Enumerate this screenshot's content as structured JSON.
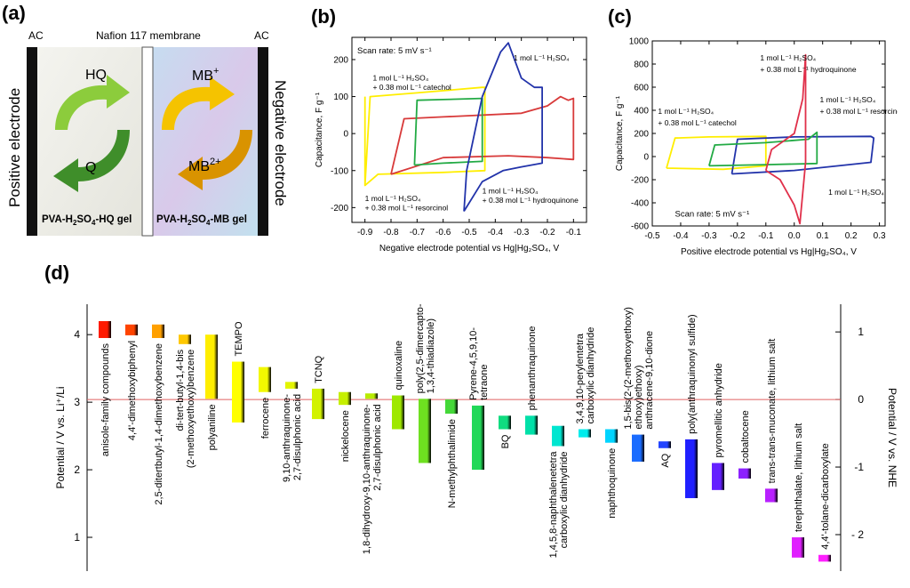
{
  "panels": {
    "a": "(a)",
    "b": "(b)",
    "c": "(c)",
    "d": "(d)"
  },
  "panel_a": {
    "ac_left": "AC",
    "ac_right": "AC",
    "membrane": "Nafion 117 membrane",
    "positive_electrode": "Positive electrode",
    "negative_electrode": "Negative electrode",
    "hq": "HQ",
    "q": "Q",
    "mb_plus": "MB",
    "mb_plus_sup": "+",
    "mb_2plus": "MB",
    "mb_2plus_sup": "2+",
    "gel_left": "PVA-H",
    "gel_left_sub1": "2",
    "gel_left_mid": "SO",
    "gel_left_sub2": "4",
    "gel_left_end": "-HQ gel",
    "gel_right": "PVA-H",
    "gel_right_sub1": "2",
    "gel_right_mid": "SO",
    "gel_right_sub2": "4",
    "gel_right_end": "-MB gel",
    "colors": {
      "green_dark": "#3f8e2a",
      "green_light": "#8ccc3c",
      "orange_dark": "#d99300",
      "orange_light": "#f5c300",
      "electrode": "#111111"
    }
  },
  "chart_data": [
    {
      "id": "b",
      "type": "line",
      "xlabel": "Negative electrode potential vs Hg|Hg₂SO₄, V",
      "ylabel": "Capacitance, F g⁻¹",
      "xlim": [
        -0.95,
        -0.05
      ],
      "ylim": [
        -240,
        260
      ],
      "xticks": [
        -0.9,
        -0.8,
        -0.7,
        -0.6,
        -0.5,
        -0.4,
        -0.3,
        -0.2,
        -0.1
      ],
      "xtick_labels": [
        "-0.9",
        "-0.8",
        "-0.7",
        "-0.6",
        "-0.5",
        "-0.4",
        "-0.3",
        "-0.2",
        "-0.1"
      ],
      "yticks": [
        -200,
        -100,
        0,
        100,
        200
      ],
      "ytick_labels": [
        "-200",
        "-100",
        "0",
        "100",
        "200"
      ],
      "annotation": "Scan rate: 5 mV s⁻¹",
      "series": [
        {
          "color": "#ffee00",
          "x": [
            -0.9,
            -0.88,
            -0.7,
            -0.45,
            -0.44,
            -0.44,
            -0.6,
            -0.85,
            -0.9,
            -0.9
          ],
          "y": [
            -140,
            100,
            110,
            125,
            125,
            -100,
            -105,
            -110,
            -140,
            100
          ]
        },
        {
          "color": "#d83a3a",
          "x": [
            -0.8,
            -0.75,
            -0.6,
            -0.3,
            -0.2,
            -0.15,
            -0.12,
            -0.1,
            -0.1,
            -0.2,
            -0.35,
            -0.6,
            -0.8
          ],
          "y": [
            -110,
            40,
            45,
            55,
            75,
            100,
            90,
            95,
            -70,
            -65,
            -60,
            -65,
            -110
          ]
        },
        {
          "color": "#22aa44",
          "x": [
            -0.71,
            -0.7,
            -0.6,
            -0.45,
            -0.45,
            -0.6,
            -0.71
          ],
          "y": [
            -85,
            90,
            92,
            95,
            -75,
            -80,
            -85
          ]
        },
        {
          "color": "#2233aa",
          "x": [
            -0.52,
            -0.51,
            -0.45,
            -0.38,
            -0.35,
            -0.3,
            -0.25,
            -0.22,
            -0.22,
            -0.3,
            -0.37,
            -0.45,
            -0.52,
            -0.52
          ],
          "y": [
            -210,
            -100,
            100,
            220,
            245,
            150,
            125,
            125,
            -80,
            -90,
            -100,
            -130,
            -210,
            -210
          ]
        }
      ],
      "labels": [
        {
          "text": "1 mol L⁻¹ H₂SO₄",
          "x": -0.33,
          "y": 198
        },
        {
          "text": "1 mol L⁻¹ H₂SO₄",
          "x": -0.87,
          "y": 143
        },
        {
          "text": "+ 0.38 mol L⁻¹ catechol",
          "x": -0.87,
          "y": 118
        },
        {
          "text": "1 mol L⁻¹ H₂SO₄",
          "x": -0.9,
          "y": -182
        },
        {
          "text": "+ 0.38 mol L⁻¹ resorcinol",
          "x": -0.9,
          "y": -207
        },
        {
          "text": "1 mol L⁻¹ H₂SO₄",
          "x": -0.45,
          "y": -162
        },
        {
          "text": "+ 0.38 mol L⁻¹ hydroquinone",
          "x": -0.45,
          "y": -187
        }
      ]
    },
    {
      "id": "c",
      "type": "line",
      "xlabel": "Positive electrode potential vs Hg|Hg₂SO₄, V",
      "ylabel": "Capacitance, F g⁻¹",
      "xlim": [
        -0.5,
        0.32
      ],
      "ylim": [
        -600,
        1000
      ],
      "xticks": [
        -0.5,
        -0.4,
        -0.3,
        -0.2,
        -0.1,
        0.0,
        0.1,
        0.2,
        0.3
      ],
      "xtick_labels": [
        "-0.5",
        "-0.4",
        "-0.3",
        "-0.2",
        "-0.1",
        "0.0",
        "0.1",
        "0.2",
        "0.3"
      ],
      "yticks": [
        -600,
        -400,
        -200,
        0,
        200,
        400,
        600,
        800,
        1000
      ],
      "ytick_labels": [
        "-600",
        "-400",
        "-200",
        "0",
        "200",
        "400",
        "600",
        "800",
        "1000"
      ],
      "annotation": "Scan rate: 5 mV s⁻¹",
      "series": [
        {
          "color": "#ffee00",
          "x": [
            -0.45,
            -0.42,
            -0.3,
            -0.1,
            -0.1,
            -0.25,
            -0.45
          ],
          "y": [
            -100,
            160,
            170,
            175,
            -80,
            -110,
            -100
          ]
        },
        {
          "color": "#2233aa",
          "x": [
            -0.22,
            -0.2,
            0.0,
            0.27,
            0.28,
            0.27,
            0.0,
            -0.22
          ],
          "y": [
            -150,
            150,
            170,
            175,
            160,
            -50,
            -120,
            -150
          ]
        },
        {
          "color": "#22aa44",
          "x": [
            -0.3,
            -0.28,
            -0.1,
            0.05,
            0.08,
            0.08,
            -0.1,
            -0.3
          ],
          "y": [
            -80,
            100,
            120,
            150,
            210,
            -60,
            -70,
            -80
          ]
        },
        {
          "color": "#e0304a",
          "x": [
            -0.1,
            -0.08,
            0.0,
            0.03,
            0.04,
            0.04,
            0.02,
            0.0,
            -0.05,
            -0.1
          ],
          "y": [
            -120,
            60,
            200,
            500,
            880,
            -50,
            -580,
            -420,
            -200,
            -120
          ]
        }
      ],
      "labels": [
        {
          "text": "1 mol L⁻¹ H₂SO₄",
          "x": -0.12,
          "y": 830
        },
        {
          "text": "+ 0.38 mol L⁻¹ hydroquinone",
          "x": -0.12,
          "y": 730
        },
        {
          "text": "1 mol L⁻¹ H₂SO₄",
          "x": 0.09,
          "y": 470
        },
        {
          "text": "+ 0.38 mol L⁻¹ resorcinol",
          "x": 0.09,
          "y": 370
        },
        {
          "text": "1 mol L⁻¹ H₂SO₄",
          "x": -0.48,
          "y": 370
        },
        {
          "text": "+ 0.38 mol L⁻¹ catechol",
          "x": -0.48,
          "y": 270
        },
        {
          "text": "1 mol L⁻¹ H₂SO₄",
          "x": 0.12,
          "y": -330
        }
      ]
    },
    {
      "id": "d",
      "type": "bar",
      "ylabel": "Potential / V vs. Li⁺/Li",
      "y2label": "Potential / V vs. NHE",
      "ylim": [
        0.5,
        4.45
      ],
      "yticks": [
        1,
        2,
        3,
        4
      ],
      "ytick_labels": [
        "1",
        "2",
        "3",
        "4"
      ],
      "y2_offset": 3.04,
      "y2ticks": [
        -2,
        -1,
        0,
        1
      ],
      "y2tick_labels": [
        "- 2",
        "-1",
        "0",
        "1"
      ],
      "ref_line": 3.04,
      "bars": [
        {
          "label": "anisole-family compounds",
          "low": 3.95,
          "high": 4.2,
          "color": "#ff1a00",
          "label_pos": "below"
        },
        {
          "label": "4,4'-dimethoxybiphenyl",
          "low": 3.99,
          "high": 4.15,
          "color": "#ff4400",
          "label_pos": "below"
        },
        {
          "label": "2,5-ditertbutyl-1,4-dimethoxybenzene",
          "low": 3.95,
          "high": 4.15,
          "color": "#ffa000",
          "label_pos": "below"
        },
        {
          "label": "di-tert-butyl-1,4-bis\n(2-methoxyethoxy)benzene",
          "low": 3.86,
          "high": 4.0,
          "color": "#ffc800",
          "label_pos": "below"
        },
        {
          "label": "polyaniline",
          "low": 3.05,
          "high": 4.0,
          "color": "#ffee00",
          "label_pos": "below"
        },
        {
          "label": "TEMPO",
          "low": 2.7,
          "high": 3.6,
          "color": "#ffff00",
          "label_pos": "above"
        },
        {
          "label": "ferrocene",
          "low": 3.15,
          "high": 3.52,
          "color": "#f2f800",
          "label_pos": "below"
        },
        {
          "label": "9,10-anthraquinone-\n2,7-disulphonic acid",
          "low": 3.2,
          "high": 3.3,
          "color": "#e3f500",
          "label_pos": "below"
        },
        {
          "label": "TCNQ",
          "low": 2.75,
          "high": 3.2,
          "color": "#d2f200",
          "label_pos": "above"
        },
        {
          "label": "nickelocene",
          "low": 2.96,
          "high": 3.15,
          "color": "#c6ef00",
          "label_pos": "below"
        },
        {
          "label": "1,8-dihydroxy-9,10-anthraquinone-\n2,7-disulphonic acid",
          "low": 3.05,
          "high": 3.13,
          "color": "#b8ec00",
          "label_pos": "below"
        },
        {
          "label": "quinoxaline",
          "low": 2.6,
          "high": 3.1,
          "color": "#9ee800",
          "label_pos": "above"
        },
        {
          "label": "poly(2,5-dimercapto-\n1,3,4-thiadiazole)",
          "low": 2.1,
          "high": 3.05,
          "color": "#6ee020",
          "label_pos": "above"
        },
        {
          "label": "N-methylphthalimide",
          "low": 2.83,
          "high": 3.04,
          "color": "#44d838",
          "label_pos": "below"
        },
        {
          "label": "Pyrene-4,5,9,10-\ntetraone",
          "low": 2.0,
          "high": 2.95,
          "color": "#22d858",
          "label_pos": "above"
        },
        {
          "label": "BQ",
          "low": 2.6,
          "high": 2.8,
          "color": "#10dc80",
          "label_pos": "below"
        },
        {
          "label": "phenanthraquinone",
          "low": 2.52,
          "high": 2.8,
          "color": "#00e0a8",
          "label_pos": "above"
        },
        {
          "label": "1,4,5,8-naphthalenetetra\ncarboxylic dianhydride",
          "low": 2.35,
          "high": 2.65,
          "color": "#00e6d0",
          "label_pos": "below"
        },
        {
          "label": "3,4,9,10-perylentetra\ncarboxylic dianhydride",
          "low": 2.48,
          "high": 2.6,
          "color": "#00ecec",
          "label_pos": "above"
        },
        {
          "label": "naphthoquinone",
          "low": 2.4,
          "high": 2.6,
          "color": "#00d4ff",
          "label_pos": "below"
        },
        {
          "label": "1,5-bis(2-(2-methoxyethoxy)\nethoxy)ethoxy)\nanthracene-9,10-dione",
          "low": 2.12,
          "high": 2.52,
          "color": "#1a6cff",
          "label_pos": "above"
        },
        {
          "label": "AQ",
          "low": 2.32,
          "high": 2.42,
          "color": "#2244ff",
          "label_pos": "below"
        },
        {
          "label": "poly(anthraquinonyl sulfide)",
          "low": 1.58,
          "high": 2.45,
          "color": "#2020ff",
          "label_pos": "above"
        },
        {
          "label": "pyromellitic anhydride",
          "low": 1.7,
          "high": 2.1,
          "color": "#6420ff",
          "label_pos": "above"
        },
        {
          "label": "cobaltocene",
          "low": 1.87,
          "high": 2.02,
          "color": "#8c20ff",
          "label_pos": "above"
        },
        {
          "label": "trans-trans-muconate, lithium salt",
          "low": 1.52,
          "high": 1.72,
          "color": "#b820ff",
          "label_pos": "above"
        },
        {
          "label": "terephthalate, lithium salt",
          "low": 0.7,
          "high": 1.0,
          "color": "#e020ff",
          "label_pos": "above"
        },
        {
          "label": "4,4'-tolane-dicarboxylate",
          "low": 0.64,
          "high": 0.74,
          "color": "#ff20ff",
          "label_pos": "above"
        }
      ]
    }
  ]
}
